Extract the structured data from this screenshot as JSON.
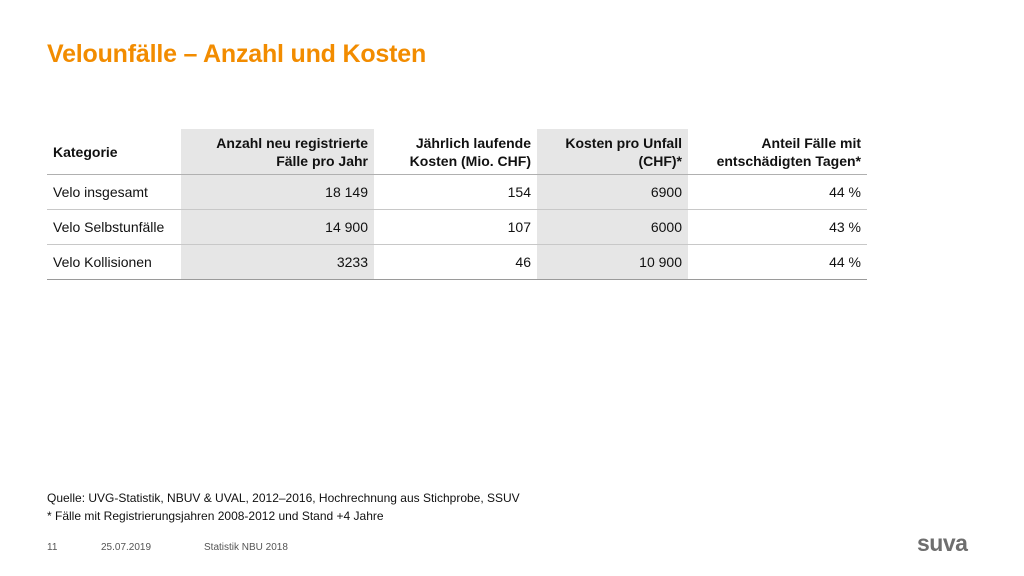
{
  "title": "Velounfälle – Anzahl und Kosten",
  "table": {
    "headers": [
      [
        "Kategorie"
      ],
      [
        "Anzahl neu registrierte",
        "Fälle pro Jahr"
      ],
      [
        "Jährlich laufende",
        "Kosten (Mio. CHF)"
      ],
      [
        "Kosten pro Unfall",
        "(CHF)*"
      ],
      [
        "Anteil Fälle mit",
        "entschädigten Tagen*"
      ]
    ],
    "rows": [
      [
        "Velo insgesamt",
        "18 149",
        "154",
        "6900",
        "44 %"
      ],
      [
        "Velo Selbstunfälle",
        "14 900",
        "107",
        "6000",
        "43 %"
      ],
      [
        "Velo Kollisionen",
        "3233",
        "46",
        "10 900",
        "44 %"
      ]
    ]
  },
  "notes": {
    "source": "Quelle: UVG-Statistik, NBUV & UVAL, 2012–2016, Hochrechnung aus Stichprobe, SSUV",
    "footnote": "* Fälle mit Registrierungsjahren 2008-2012 und Stand +4 Jahre"
  },
  "footer": {
    "page": "11",
    "date": "25.07.2019",
    "label": "Statistik NBU 2018"
  },
  "logo": "suva",
  "colors": {
    "title": "#f28c00",
    "shade": "#e6e6e6",
    "logo": "#6e6e6e"
  }
}
